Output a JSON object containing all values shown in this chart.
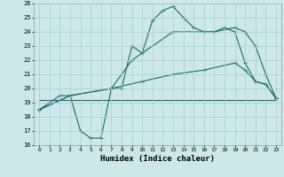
{
  "title": "",
  "xlabel": "Humidex (Indice chaleur)",
  "ylabel": "",
  "background_color": "#cce8e8",
  "grid_color": "#aacece",
  "line_color": "#1a6b6b",
  "ylim": [
    16,
    26
  ],
  "xlim": [
    -0.5,
    23.5
  ],
  "yticks": [
    16,
    17,
    18,
    19,
    20,
    21,
    22,
    23,
    24,
    25,
    26
  ],
  "xticks": [
    0,
    1,
    2,
    3,
    4,
    5,
    6,
    7,
    8,
    9,
    10,
    11,
    12,
    13,
    14,
    15,
    16,
    17,
    18,
    19,
    20,
    21,
    22,
    23
  ],
  "line1_x": [
    0,
    1,
    2,
    3,
    4,
    5,
    6,
    7,
    8,
    9,
    10,
    11,
    12,
    13,
    14,
    15,
    16,
    17,
    18,
    19,
    20,
    21,
    22,
    23
  ],
  "line1_y": [
    18.5,
    19.0,
    19.5,
    19.5,
    17.0,
    16.5,
    16.5,
    20.0,
    20.0,
    23.0,
    22.5,
    24.8,
    25.5,
    25.8,
    25.0,
    24.3,
    24.0,
    24.0,
    24.3,
    24.0,
    21.8,
    20.5,
    20.3,
    19.3
  ],
  "line2_x": [
    0,
    3,
    7,
    9,
    13,
    17,
    19,
    20,
    21,
    22,
    23
  ],
  "line2_y": [
    18.5,
    19.5,
    20.0,
    22.0,
    24.0,
    24.0,
    24.3,
    24.0,
    23.0,
    21.0,
    19.3
  ],
  "line3_x": [
    0,
    23
  ],
  "line3_y": [
    19.2,
    19.2
  ],
  "line4_x": [
    0,
    3,
    7,
    10,
    13,
    16,
    19,
    20,
    21,
    22,
    23
  ],
  "line4_y": [
    18.5,
    19.5,
    20.0,
    20.5,
    21.0,
    21.3,
    21.8,
    21.3,
    20.5,
    20.3,
    19.3
  ]
}
